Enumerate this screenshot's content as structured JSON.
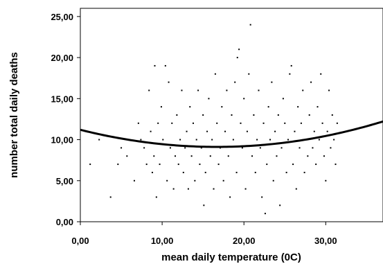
{
  "chart_data": {
    "type": "scatter",
    "title": "",
    "xlabel": "mean daily temperature (0C)",
    "ylabel": "number total daily deaths",
    "xlim": [
      0,
      37
    ],
    "ylim": [
      0,
      26
    ],
    "x_ticks": [
      0,
      10,
      20,
      30
    ],
    "x_tick_labels": [
      "0,00",
      "10,00",
      "20,00",
      "30,00"
    ],
    "y_ticks": [
      0,
      5,
      10,
      15,
      20,
      25
    ],
    "y_tick_labels": [
      "0,00",
      "5,00",
      "10,00",
      "15,00",
      "20,00",
      "25,00"
    ],
    "grid": false,
    "legend": "none",
    "point_color": "#000000",
    "fit_line": {
      "type": "quadratic",
      "coefficients": [
        11.2,
        -0.25,
        0.0075
      ],
      "color": "#000000"
    },
    "series": [
      {
        "values": [
          [
            1.2,
            7
          ],
          [
            2.3,
            10
          ],
          [
            3.7,
            3
          ],
          [
            4.6,
            7
          ],
          [
            5.0,
            9
          ],
          [
            5.7,
            8
          ],
          [
            6.6,
            5
          ],
          [
            7.1,
            12
          ],
          [
            7.4,
            10
          ],
          [
            7.8,
            9
          ],
          [
            8.1,
            7
          ],
          [
            8.4,
            16
          ],
          [
            8.6,
            11
          ],
          [
            8.8,
            6
          ],
          [
            9.0,
            8
          ],
          [
            9.1,
            19
          ],
          [
            9.3,
            3
          ],
          [
            9.5,
            12
          ],
          [
            9.7,
            7
          ],
          [
            9.9,
            14
          ],
          [
            10.1,
            10
          ],
          [
            10.4,
            19
          ],
          [
            10.6,
            5
          ],
          [
            10.8,
            17
          ],
          [
            11.0,
            9
          ],
          [
            11.2,
            12
          ],
          [
            11.4,
            4
          ],
          [
            11.6,
            8
          ],
          [
            11.8,
            13
          ],
          [
            12.0,
            7
          ],
          [
            12.2,
            10
          ],
          [
            12.4,
            16
          ],
          [
            12.6,
            6
          ],
          [
            12.8,
            9
          ],
          [
            13.0,
            11
          ],
          [
            13.2,
            4
          ],
          [
            13.4,
            14
          ],
          [
            13.6,
            8
          ],
          [
            13.8,
            12
          ],
          [
            14.0,
            5
          ],
          [
            14.2,
            10
          ],
          [
            14.4,
            16
          ],
          [
            14.6,
            7
          ],
          [
            14.8,
            9
          ],
          [
            15.0,
            13
          ],
          [
            15.1,
            2
          ],
          [
            15.3,
            6
          ],
          [
            15.5,
            11
          ],
          [
            15.7,
            15
          ],
          [
            15.9,
            8
          ],
          [
            16.1,
            10
          ],
          [
            16.3,
            4
          ],
          [
            16.5,
            18
          ],
          [
            16.7,
            12
          ],
          [
            16.9,
            7
          ],
          [
            17.1,
            9
          ],
          [
            17.3,
            14
          ],
          [
            17.5,
            5
          ],
          [
            17.7,
            11
          ],
          [
            17.9,
            16
          ],
          [
            18.1,
            8
          ],
          [
            18.3,
            3
          ],
          [
            18.5,
            13
          ],
          [
            18.7,
            10
          ],
          [
            18.9,
            17
          ],
          [
            19.1,
            6
          ],
          [
            19.2,
            20
          ],
          [
            19.4,
            21
          ],
          [
            19.6,
            12
          ],
          [
            19.8,
            9
          ],
          [
            20.0,
            15
          ],
          [
            20.2,
            4
          ],
          [
            20.4,
            11
          ],
          [
            20.6,
            18
          ],
          [
            20.8,
            24
          ],
          [
            21.0,
            8
          ],
          [
            21.2,
            13
          ],
          [
            21.4,
            6
          ],
          [
            21.6,
            10
          ],
          [
            21.8,
            16
          ],
          [
            22.0,
            9
          ],
          [
            22.2,
            3
          ],
          [
            22.4,
            12
          ],
          [
            22.6,
            1
          ],
          [
            22.8,
            7
          ],
          [
            23.0,
            14
          ],
          [
            23.2,
            10
          ],
          [
            23.4,
            17
          ],
          [
            23.6,
            5
          ],
          [
            23.8,
            11
          ],
          [
            24.0,
            8
          ],
          [
            24.2,
            13
          ],
          [
            24.4,
            2
          ],
          [
            24.6,
            9
          ],
          [
            24.8,
            15
          ],
          [
            25.0,
            12
          ],
          [
            25.2,
            6
          ],
          [
            25.4,
            10
          ],
          [
            25.6,
            18
          ],
          [
            25.8,
            19
          ],
          [
            26.0,
            7
          ],
          [
            26.2,
            11
          ],
          [
            26.4,
            4
          ],
          [
            26.6,
            14
          ],
          [
            26.8,
            9
          ],
          [
            27.0,
            12
          ],
          [
            27.2,
            16
          ],
          [
            27.4,
            6
          ],
          [
            27.6,
            10
          ],
          [
            27.8,
            8
          ],
          [
            28.0,
            13
          ],
          [
            28.2,
            17
          ],
          [
            28.4,
            9
          ],
          [
            28.6,
            11
          ],
          [
            28.8,
            7
          ],
          [
            29.0,
            14
          ],
          [
            29.2,
            10
          ],
          [
            29.4,
            18
          ],
          [
            29.6,
            12
          ],
          [
            29.8,
            8
          ],
          [
            30.0,
            5
          ],
          [
            30.2,
            11
          ],
          [
            30.4,
            16
          ],
          [
            30.6,
            9
          ],
          [
            30.8,
            13
          ],
          [
            31.0,
            10
          ],
          [
            31.2,
            7
          ],
          [
            31.4,
            12
          ]
        ]
      }
    ]
  }
}
